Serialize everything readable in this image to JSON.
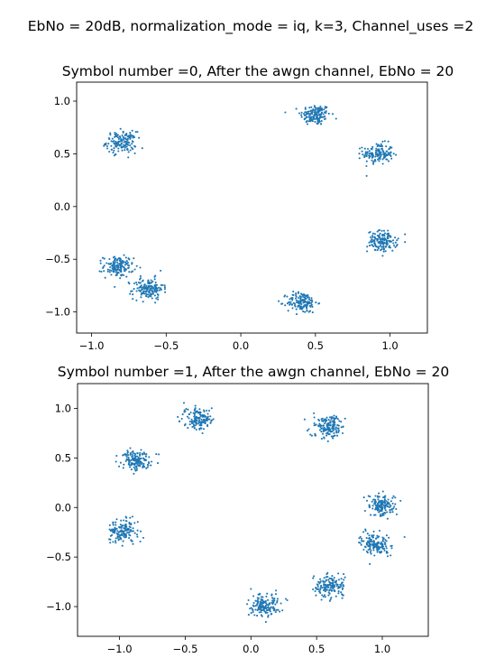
{
  "figure": {
    "suptitle": "EbNo = 20dB, normalization_mode = iq, k=3, Channel_uses =2"
  },
  "chart_data": [
    {
      "type": "scatter",
      "title": "Symbol number =0, After the awgn channel, EbNo = 20",
      "xlabel": "",
      "ylabel": "",
      "xlim": [
        -1.1,
        1.25
      ],
      "ylim": [
        -1.2,
        1.18
      ],
      "xticks": [
        -1.0,
        -0.5,
        0.0,
        0.5,
        1.0
      ],
      "xtick_labels": [
        "−1.0",
        "−0.5",
        "0.0",
        "0.5",
        "1.0"
      ],
      "yticks": [
        1.0,
        0.5,
        0.0,
        -0.5,
        -1.0
      ],
      "ytick_labels": [
        "1.0",
        "0.5",
        "0.0",
        "−0.5",
        "−1.0"
      ],
      "grid": false,
      "marker_color": "#1f77b4",
      "points_per_cluster": 150,
      "noise_std": 0.05,
      "clusters": [
        {
          "x": 0.5,
          "y": 0.87
        },
        {
          "x": 0.92,
          "y": 0.5
        },
        {
          "x": -0.8,
          "y": 0.61
        },
        {
          "x": 0.95,
          "y": -0.33
        },
        {
          "x": -0.82,
          "y": -0.57
        },
        {
          "x": -0.62,
          "y": -0.78
        },
        {
          "x": 0.41,
          "y": -0.91
        }
      ]
    },
    {
      "type": "scatter",
      "title": "Symbol number =1, After the awgn channel, EbNo = 20",
      "xlabel": "",
      "ylabel": "",
      "xlim": [
        -1.32,
        1.35
      ],
      "ylim": [
        -1.3,
        1.25
      ],
      "xticks": [
        -1.0,
        -0.5,
        0.0,
        0.5,
        1.0
      ],
      "xtick_labels": [
        "−1.0",
        "−0.5",
        "0.0",
        "0.5",
        "1.0"
      ],
      "yticks": [
        1.0,
        0.5,
        0.0,
        -0.5,
        -1.0
      ],
      "ytick_labels": [
        "1.0",
        "0.5",
        "0.0",
        "−0.5",
        "−1.0"
      ],
      "grid": false,
      "marker_color": "#1f77b4",
      "points_per_cluster": 150,
      "noise_std": 0.055,
      "clusters": [
        {
          "x": -0.4,
          "y": 0.9
        },
        {
          "x": 0.58,
          "y": 0.82
        },
        {
          "x": -0.87,
          "y": 0.48
        },
        {
          "x": 1.0,
          "y": 0.02
        },
        {
          "x": -0.97,
          "y": -0.24
        },
        {
          "x": 0.95,
          "y": -0.37
        },
        {
          "x": 0.6,
          "y": -0.79
        },
        {
          "x": 0.1,
          "y": -0.99
        }
      ]
    }
  ]
}
